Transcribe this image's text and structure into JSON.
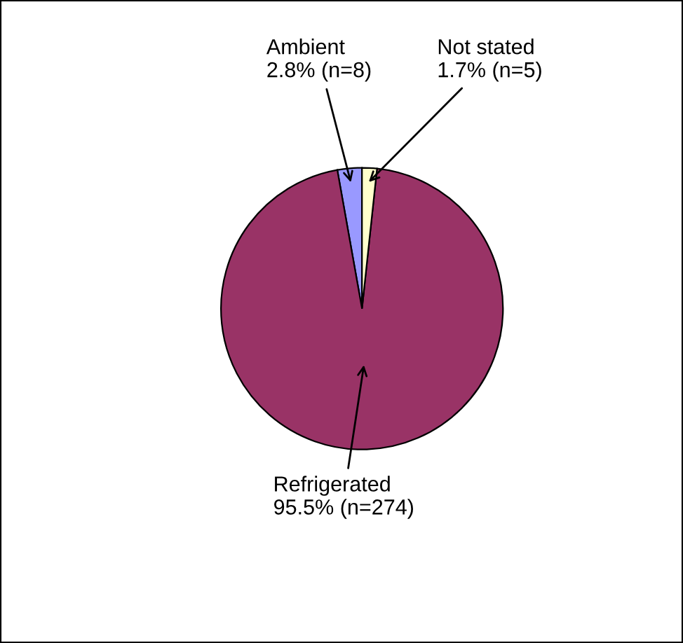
{
  "chart_data": {
    "type": "pie",
    "categories": [
      "Ambient",
      "Refrigerated",
      "Not stated"
    ],
    "values": [
      2.8,
      95.5,
      1.7
    ],
    "value_labels": [
      "2.8% (n=8)",
      "95.5% (n=274)",
      "1.7% (n=5)"
    ],
    "colors": [
      "#9999ff",
      "#993366",
      "#ffffcc"
    ],
    "legend": false
  }
}
